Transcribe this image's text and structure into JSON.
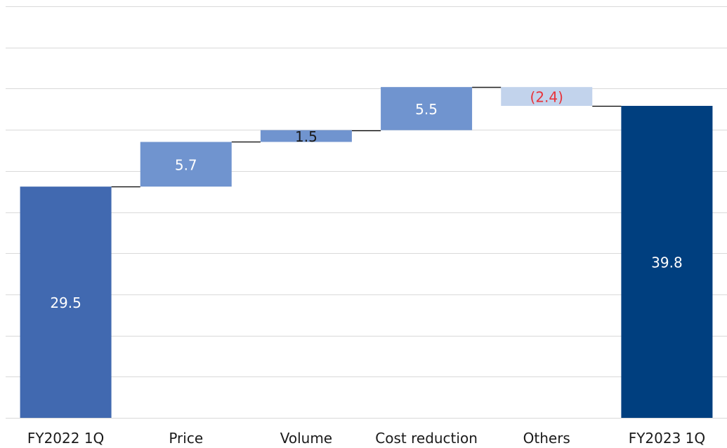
{
  "chart_data": {
    "type": "bar",
    "subtype": "waterfall",
    "categories": [
      "FY2022 1Q",
      "Price",
      "Volume",
      "Cost reduction",
      "Others",
      "FY2023 1Q"
    ],
    "steps": [
      {
        "kind": "total",
        "value": 29.5,
        "label": "29.5",
        "color": "#4169b0",
        "label_color": "#ffffff"
      },
      {
        "kind": "delta",
        "value": 5.7,
        "label": "5.7",
        "color": "#7094cf",
        "label_color": "#ffffff"
      },
      {
        "kind": "delta",
        "value": 1.5,
        "label": "1.5",
        "color": "#7094cf",
        "label_color": "#1a1a1a"
      },
      {
        "kind": "delta",
        "value": 5.5,
        "label": "5.5",
        "color": "#7094cf",
        "label_color": "#ffffff"
      },
      {
        "kind": "delta",
        "value": -2.4,
        "label": "(2.4)",
        "color": "#c2d3ec",
        "label_color": "#e8333b"
      },
      {
        "kind": "total",
        "value": 39.8,
        "label": "39.8",
        "color": "#003f7f",
        "label_color": "#ffffff"
      }
    ],
    "ylim": [
      0,
      52.5
    ],
    "gridlines": 10,
    "grid": true,
    "legend": "none",
    "title": "",
    "xlabel": "",
    "ylabel": ""
  }
}
